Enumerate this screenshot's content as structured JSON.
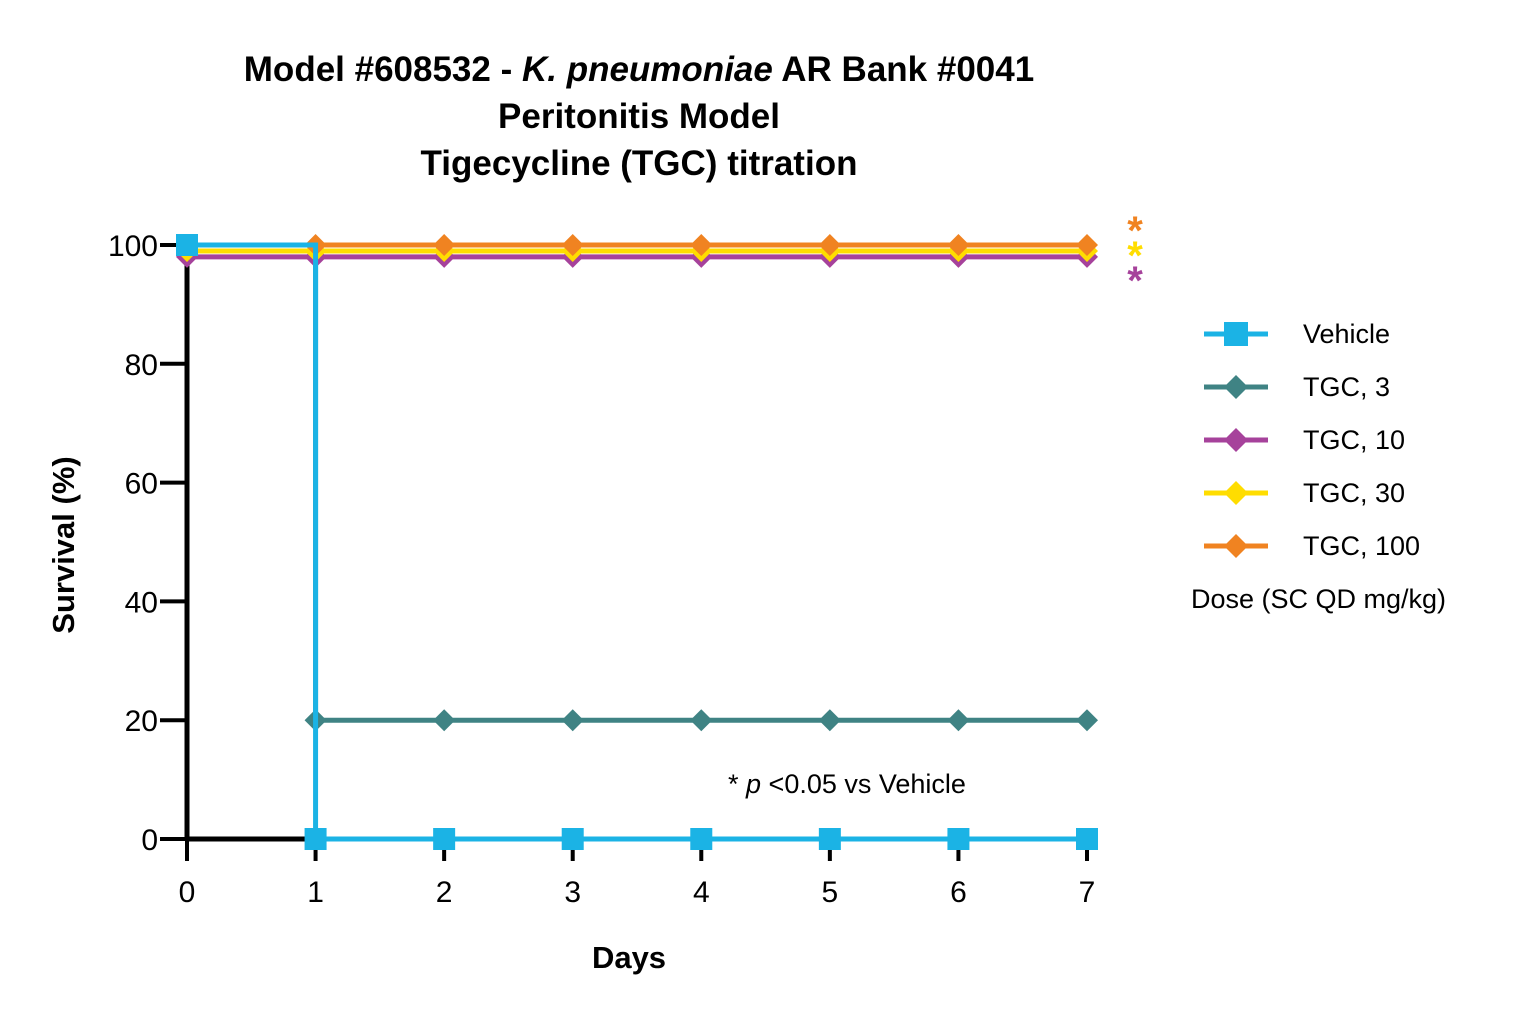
{
  "chart_data": {
    "type": "line",
    "title_line1_before": "Model #608532 - ",
    "title_line1_italic": "K. pneumoniae",
    "title_line1_after": " AR Bank #0041",
    "title_line2": "Peritonitis Model",
    "title_line3": "Tigecycline (TGC) titration",
    "xlabel": "Days",
    "ylabel": "Survival (%)",
    "xlim": [
      0,
      7
    ],
    "ylim": [
      0,
      100
    ],
    "x_ticks": [
      "0",
      "1",
      "2",
      "3",
      "4",
      "5",
      "6",
      "7"
    ],
    "y_ticks": [
      "0",
      "20",
      "40",
      "60",
      "80",
      "100"
    ],
    "step": true,
    "grid": false,
    "legend_position": "right",
    "legend_note": "Dose (SC QD mg/kg)",
    "annotation_prefix": "* ",
    "annotation_italic": "p",
    "annotation_suffix": " <0.05 vs Vehicle",
    "significance_marker": "*",
    "series": [
      {
        "name": "Vehicle",
        "color": "#1BB3E5",
        "marker": "square",
        "x": [
          0,
          1,
          2,
          3,
          4,
          5,
          6,
          7
        ],
        "y": [
          100,
          0,
          0,
          0,
          0,
          0,
          0,
          0
        ]
      },
      {
        "name": "TGC, 3",
        "color": "#3F8384",
        "marker": "diamond",
        "x": [
          0,
          1,
          2,
          3,
          4,
          5,
          6,
          7
        ],
        "y": [
          100,
          20,
          20,
          20,
          20,
          20,
          20,
          20
        ]
      },
      {
        "name": "TGC, 10",
        "color": "#A6429B",
        "marker": "diamond",
        "significant": true,
        "x": [
          0,
          1,
          2,
          3,
          4,
          5,
          6,
          7
        ],
        "y": [
          98,
          98,
          98,
          98,
          98,
          98,
          98,
          98
        ]
      },
      {
        "name": "TGC, 30",
        "color": "#FFDD00",
        "marker": "diamond",
        "significant": true,
        "x": [
          0,
          1,
          2,
          3,
          4,
          5,
          6,
          7
        ],
        "y": [
          99,
          99,
          99,
          99,
          99,
          99,
          99,
          99
        ]
      },
      {
        "name": "TGC, 100",
        "color": "#F08321",
        "marker": "diamond",
        "significant": true,
        "x": [
          0,
          1,
          2,
          3,
          4,
          5,
          6,
          7
        ],
        "y": [
          100,
          100,
          100,
          100,
          100,
          100,
          100,
          100
        ]
      }
    ]
  }
}
